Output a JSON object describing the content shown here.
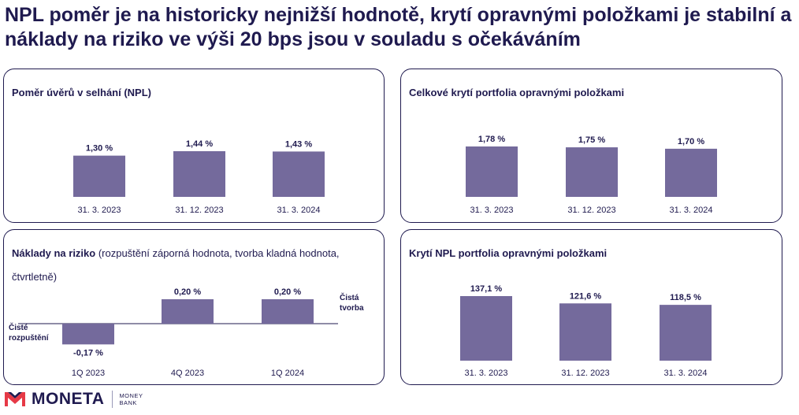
{
  "title": "NPL poměr je na historicky nejnižší hodnotě, krytí opravnými položkami je stabilní a náklady na riziko ve výši 20 bps jsou v souladu s očekáváním",
  "colors": {
    "bar": "#746a9c",
    "text": "#1f1a4f",
    "border": "#1f1a4f"
  },
  "chart_data": [
    {
      "type": "bar",
      "title": "Poměr úvěrů v selhání (NPL)",
      "subtitle": "",
      "categories": [
        "31. 3. 2023",
        "31. 12. 2023",
        "31. 3. 2024"
      ],
      "values": [
        1.3,
        1.44,
        1.43
      ],
      "labels": [
        "1,30 %",
        "1,44 %",
        "1,43 %"
      ]
    },
    {
      "type": "bar",
      "title": "Celkové krytí portfolia opravnými položkami",
      "subtitle": "",
      "categories": [
        "31. 3. 2023",
        "31. 12. 2023",
        "31. 3. 2024"
      ],
      "values": [
        1.78,
        1.75,
        1.7
      ],
      "labels": [
        "1,78 %",
        "1,75 %",
        "1,70 %"
      ]
    },
    {
      "type": "bar",
      "title": "Náklady na riziko ",
      "subtitle": "(rozpuštění záporná hodnota, tvorba kladná hodnota, čtvrtletně)",
      "categories": [
        "1Q 2023",
        "4Q 2023",
        "1Q 2024"
      ],
      "values": [
        -0.17,
        0.2,
        0.2
      ],
      "labels": [
        "-0,17 %",
        "0,20 %",
        "0,20 %"
      ],
      "annotations": {
        "positive": "Čistá tvorba",
        "negative": "Čisté rozpuštění"
      }
    },
    {
      "type": "bar",
      "title": "Krytí NPL portfolia opravnými položkami",
      "subtitle": "",
      "categories": [
        "31. 3. 2023",
        "31. 12. 2023",
        "31. 3. 2024"
      ],
      "values": [
        137.1,
        121.6,
        118.5
      ],
      "labels": [
        "137,1 %",
        "121,6 %",
        "118,5 %"
      ]
    }
  ],
  "logo": {
    "name": "MONETA",
    "sub_line1": "MONEY",
    "sub_line2": "BANK",
    "icon": "moneta-logo-icon"
  }
}
